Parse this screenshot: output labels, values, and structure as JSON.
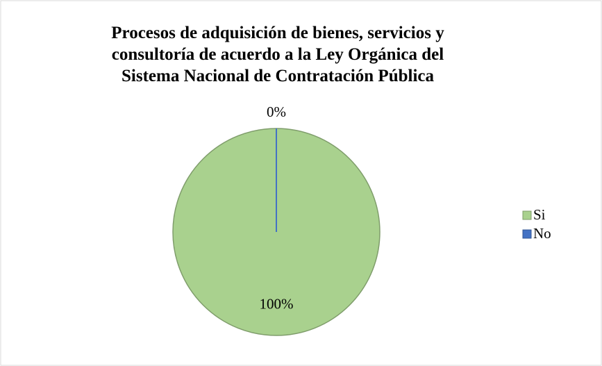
{
  "chart_data": {
    "type": "pie",
    "title": "Procesos de adquisición de bienes, servicios y consultoría de acuerdo a la Ley Orgánica del Sistema Nacional de Contratación Pública",
    "categories": [
      "Si",
      "No"
    ],
    "values": [
      100,
      0
    ],
    "value_labels": [
      "100%",
      "0%"
    ],
    "colors": [
      "#a9d18e",
      "#4472c4"
    ],
    "legend": "right"
  }
}
